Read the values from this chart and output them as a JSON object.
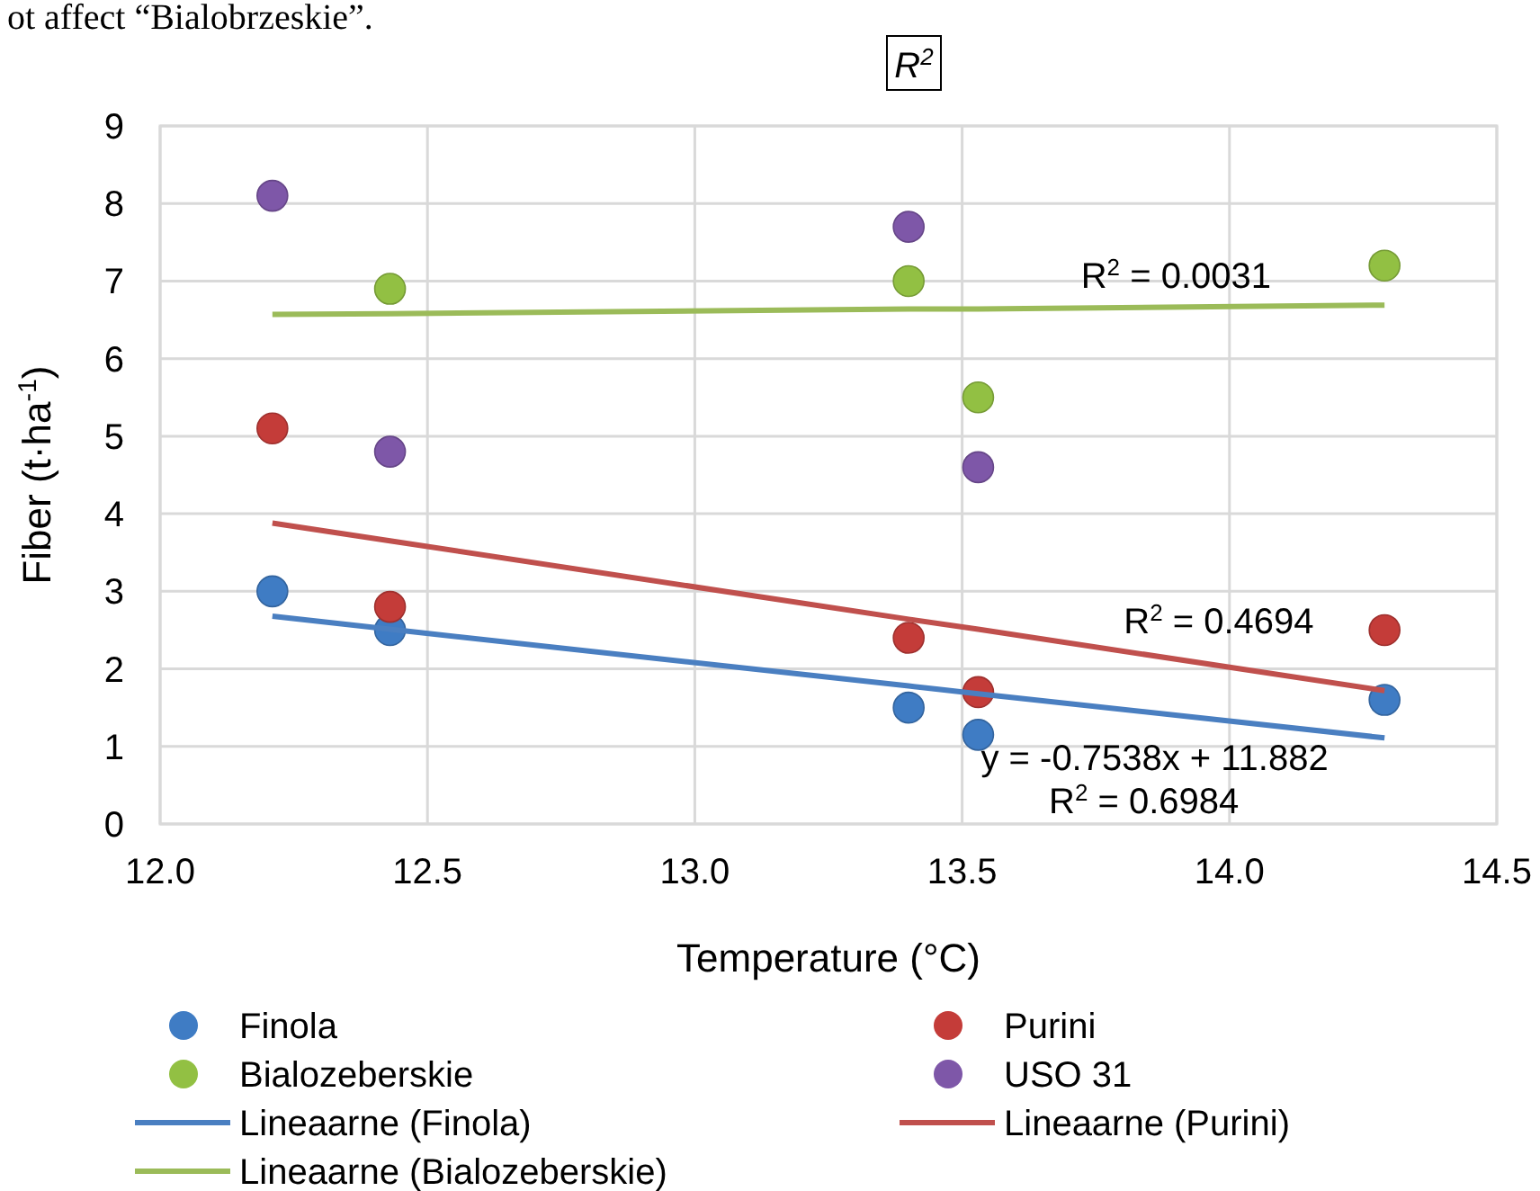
{
  "chart_data": {
    "type": "scatter",
    "xlabel": "Temperature (°C)",
    "ylabel": "Fiber (t·ha$^{-1}$)",
    "x": [
      12.21,
      12.43,
      13.4,
      13.53,
      14.29
    ],
    "series": [
      {
        "name": "Finola",
        "color": "#3f7cc4",
        "values": [
          3.0,
          2.5,
          1.5,
          1.15,
          1.6
        ]
      },
      {
        "name": "Purini",
        "color": "#c43c39",
        "values": [
          5.1,
          2.8,
          2.4,
          1.7,
          2.5
        ]
      },
      {
        "name": "Bialozeberskie",
        "color": "#92c043",
        "values": [
          null,
          6.9,
          7.0,
          5.5,
          7.2
        ]
      },
      {
        "name": "USO 31",
        "color": "#7e57a8",
        "values": [
          8.1,
          4.8,
          7.7,
          4.6,
          null
        ]
      },
      {
        "name": "Lineaarne (Finola)",
        "type": "line",
        "marker": "none",
        "color": "#4a7fc1",
        "values": [
          2.68,
          2.51,
          1.78,
          1.68,
          1.11
        ]
      },
      {
        "name": "Lineaarne (Purini)",
        "type": "line",
        "marker": "none",
        "color": "#c0504d",
        "values": [
          3.88,
          3.65,
          2.64,
          2.51,
          1.72
        ]
      },
      {
        "name": "Lineaarne (Bialozeberskie)",
        "type": "line",
        "marker": "none",
        "color": "#9bbb59",
        "values": [
          6.57,
          6.58,
          6.64,
          6.64,
          6.69
        ]
      }
    ],
    "xlim": [
      12.0,
      14.5
    ],
    "xticks": [
      {
        "value": 12,
        "label": "12.0"
      },
      12.5,
      {
        "value": 13,
        "label": "13.0"
      },
      13.5,
      {
        "value": 14,
        "label": "14.0"
      },
      14.5
    ],
    "ylim": [
      0,
      9
    ],
    "yticks": [
      0,
      1,
      2,
      3,
      4,
      5,
      6,
      7,
      8,
      9
    ],
    "grid": true,
    "legend": "bottom",
    "marker": "circle",
    "line_style": "solid",
    "annotations": [
      "ot affect “Bialobrzeskie”.",
      "R$^{2}$",
      "R$^{2}$ = 0.0031",
      "R$^{2}$ = 0.4694",
      "y = -0.7538x + 11.882",
      "R$^{2}$ = 0.6984"
    ]
  }
}
